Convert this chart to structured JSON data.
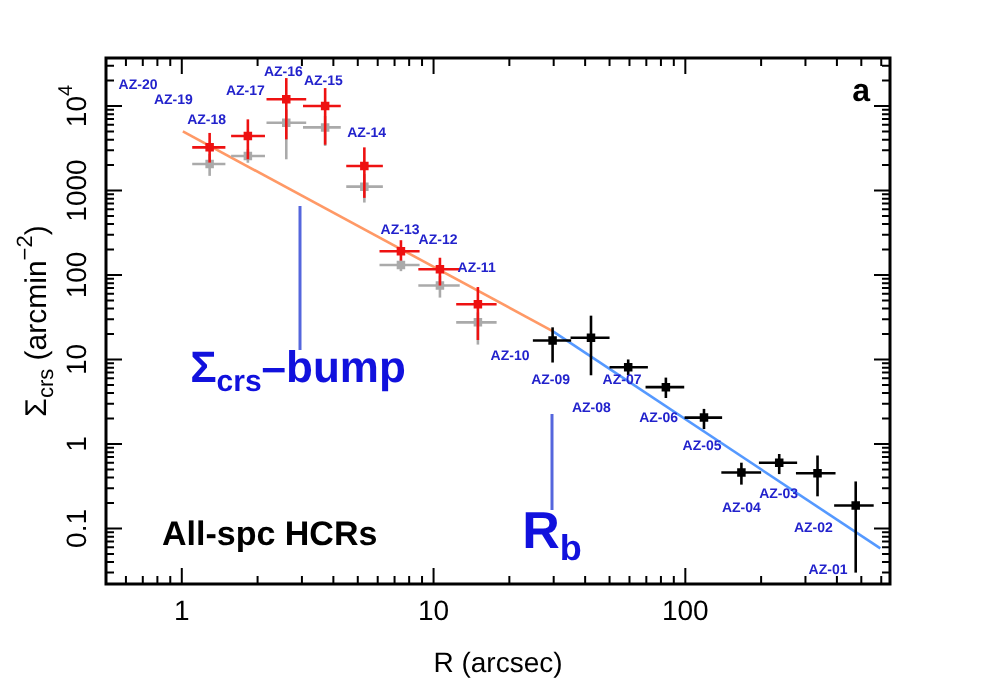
{
  "chart_data": {
    "type": "scatter",
    "xlabel": "R (arcsec)",
    "ylabel": "Σ$_{crs}$ (arcmin$^{−2}$)",
    "log": "xy",
    "grid": false,
    "legend": false,
    "marker": "square",
    "xlim": [
      0.5,
      650
    ],
    "ylim": [
      0.022,
      37000
    ],
    "xticks": [
      {
        "value": 0.6,
        "label": null
      },
      {
        "value": 0.7,
        "label": null
      },
      {
        "value": 0.8,
        "label": null
      },
      {
        "value": 0.9,
        "label": null
      },
      1,
      {
        "value": 2,
        "label": null
      },
      {
        "value": 3,
        "label": null
      },
      {
        "value": 4,
        "label": null
      },
      {
        "value": 5,
        "label": null
      },
      {
        "value": 6,
        "label": null
      },
      {
        "value": 7,
        "label": null
      },
      {
        "value": 8,
        "label": null
      },
      {
        "value": 9,
        "label": null
      },
      10,
      {
        "value": 20,
        "label": null
      },
      {
        "value": 30,
        "label": null
      },
      {
        "value": 40,
        "label": null
      },
      {
        "value": 50,
        "label": null
      },
      {
        "value": 60,
        "label": null
      },
      {
        "value": 70,
        "label": null
      },
      {
        "value": 80,
        "label": null
      },
      {
        "value": 90,
        "label": null
      },
      100,
      {
        "value": 200,
        "label": null
      },
      {
        "value": 300,
        "label": null
      },
      {
        "value": 400,
        "label": null
      },
      {
        "value": 500,
        "label": null
      },
      {
        "value": 600,
        "label": null
      }
    ],
    "yticks": [
      {
        "value": 0.03,
        "label": null
      },
      {
        "value": 0.04,
        "label": null
      },
      {
        "value": 0.05,
        "label": null
      },
      {
        "value": 0.06,
        "label": null
      },
      {
        "value": 0.07,
        "label": null
      },
      {
        "value": 0.08,
        "label": null
      },
      {
        "value": 0.09,
        "label": null
      },
      0.1,
      {
        "value": 0.2,
        "label": null
      },
      {
        "value": 0.3,
        "label": null
      },
      {
        "value": 0.4,
        "label": null
      },
      {
        "value": 0.5,
        "label": null
      },
      {
        "value": 0.6,
        "label": null
      },
      {
        "value": 0.7,
        "label": null
      },
      {
        "value": 0.8,
        "label": null
      },
      {
        "value": 0.9,
        "label": null
      },
      1,
      {
        "value": 2,
        "label": null
      },
      {
        "value": 3,
        "label": null
      },
      {
        "value": 4,
        "label": null
      },
      {
        "value": 5,
        "label": null
      },
      {
        "value": 6,
        "label": null
      },
      {
        "value": 7,
        "label": null
      },
      {
        "value": 8,
        "label": null
      },
      {
        "value": 9,
        "label": null
      },
      10,
      {
        "value": 20,
        "label": null
      },
      {
        "value": 30,
        "label": null
      },
      {
        "value": 40,
        "label": null
      },
      {
        "value": 50,
        "label": null
      },
      {
        "value": 60,
        "label": null
      },
      {
        "value": 70,
        "label": null
      },
      {
        "value": 80,
        "label": null
      },
      {
        "value": 90,
        "label": null
      },
      100,
      {
        "value": 200,
        "label": null
      },
      {
        "value": 300,
        "label": null
      },
      {
        "value": 400,
        "label": null
      },
      {
        "value": 500,
        "label": null
      },
      {
        "value": 600,
        "label": null
      },
      {
        "value": 700,
        "label": null
      },
      {
        "value": 800,
        "label": null
      },
      {
        "value": 900,
        "label": null
      },
      1000,
      {
        "value": 2000,
        "label": null
      },
      {
        "value": 3000,
        "label": null
      },
      {
        "value": 4000,
        "label": null
      },
      {
        "value": 5000,
        "label": null
      },
      {
        "value": 6000,
        "label": null
      },
      {
        "value": 7000,
        "label": null
      },
      {
        "value": 8000,
        "label": null
      },
      {
        "value": 9000,
        "label": null
      },
      {
        "value": 10000,
        "label": "10$^{4}$"
      },
      {
        "value": 20000,
        "label": null
      },
      {
        "value": 30000,
        "label": null
      }
    ],
    "series": [
      {
        "type": "line",
        "marker": "none",
        "color": "#ff9966",
        "x": [
          1.01,
          29.7
        ],
        "values": [
          5000,
          21.7
        ]
      },
      {
        "type": "line",
        "marker": "none",
        "color": "#5599ff",
        "x": [
          29.7,
          595
        ],
        "values": [
          21.7,
          0.058
        ]
      },
      {
        "color": "#aaaaaa",
        "x": [
          1.29,
          1.83,
          2.6,
          3.71,
          5.31,
          7.42,
          10.6,
          15
        ],
        "values": [
          2060,
          2560,
          6330,
          5580,
          1110,
          131,
          75,
          27.5
        ],
        "errors": [
          [
            1490,
            2700
          ],
          [
            2130,
            3070
          ],
          [
            2340,
            9100
          ],
          [
            3370,
            7610
          ],
          [
            720,
            1570
          ],
          [
            111,
            152
          ],
          [
            54,
            98
          ],
          [
            15,
            36
          ]
        ],
        "xerrors": [
          [
            1.1,
            1.49
          ],
          [
            1.57,
            2.14
          ],
          [
            2.17,
            3.12
          ],
          [
            3.03,
            4.28
          ],
          [
            4.5,
            6.29
          ],
          [
            6.1,
            8.8
          ],
          [
            8.7,
            12.7
          ],
          [
            12.3,
            17.8
          ]
        ]
      },
      {
        "color": "#ee1111",
        "x": [
          1.29,
          1.83,
          2.6,
          3.71,
          5.31,
          7.42,
          10.6,
          15
        ],
        "values": [
          3240,
          4420,
          12000,
          10000,
          1950,
          191,
          117,
          45
        ],
        "errors": [
          [
            2140,
            4800
          ],
          [
            2340,
            6950
          ],
          [
            4030,
            21400
          ],
          [
            3480,
            16300
          ],
          [
            818,
            3240
          ],
          [
            148,
            258
          ],
          [
            75,
            160
          ],
          [
            17,
            72
          ]
        ],
        "xerrors": [
          [
            1.1,
            1.49
          ],
          [
            1.57,
            2.14
          ],
          [
            2.17,
            3.12
          ],
          [
            3.03,
            4.28
          ],
          [
            4.5,
            6.29
          ],
          [
            6.1,
            8.8
          ],
          [
            8.7,
            12.7
          ],
          [
            12.3,
            17.8
          ]
        ]
      },
      {
        "color": "#000000",
        "x": [
          29.7,
          42.2,
          59.3,
          83.7,
          118.6,
          167,
          236,
          335,
          475
        ],
        "values": [
          16.8,
          18.1,
          8.1,
          4.7,
          2.05,
          0.46,
          0.6,
          0.45,
          0.187
        ],
        "errors": [
          [
            9.2,
            24
          ],
          [
            6.5,
            33
          ],
          [
            6.5,
            10
          ],
          [
            3.5,
            6.1
          ],
          [
            1.5,
            2.6
          ],
          [
            0.33,
            0.6
          ],
          [
            0.44,
            0.76
          ],
          [
            0.24,
            0.73
          ],
          [
            0.03,
            0.36
          ]
        ],
        "xerrors": [
          [
            24.8,
            35.2
          ],
          [
            35,
            50
          ],
          [
            50,
            71
          ],
          [
            69.5,
            99
          ],
          [
            99.3,
            140
          ],
          [
            139,
            200
          ],
          [
            196,
            278
          ],
          [
            275,
            395
          ],
          [
            390,
            560
          ]
        ]
      }
    ],
    "annotations": [
      "All-spc HCRs",
      "a",
      "AZ-20",
      "AZ-19",
      "AZ-18",
      "AZ-17",
      "AZ-16",
      "AZ-15",
      "AZ-14",
      "AZ-13",
      "AZ-12",
      "AZ-11",
      "AZ-10",
      "AZ-09",
      "AZ-08",
      "AZ-07",
      "AZ-06",
      "AZ-05",
      "AZ-04",
      "AZ-03",
      "AZ-02",
      "AZ-01",
      "Σ$_{crs}$–bump",
      "R$_{b}$"
    ]
  }
}
